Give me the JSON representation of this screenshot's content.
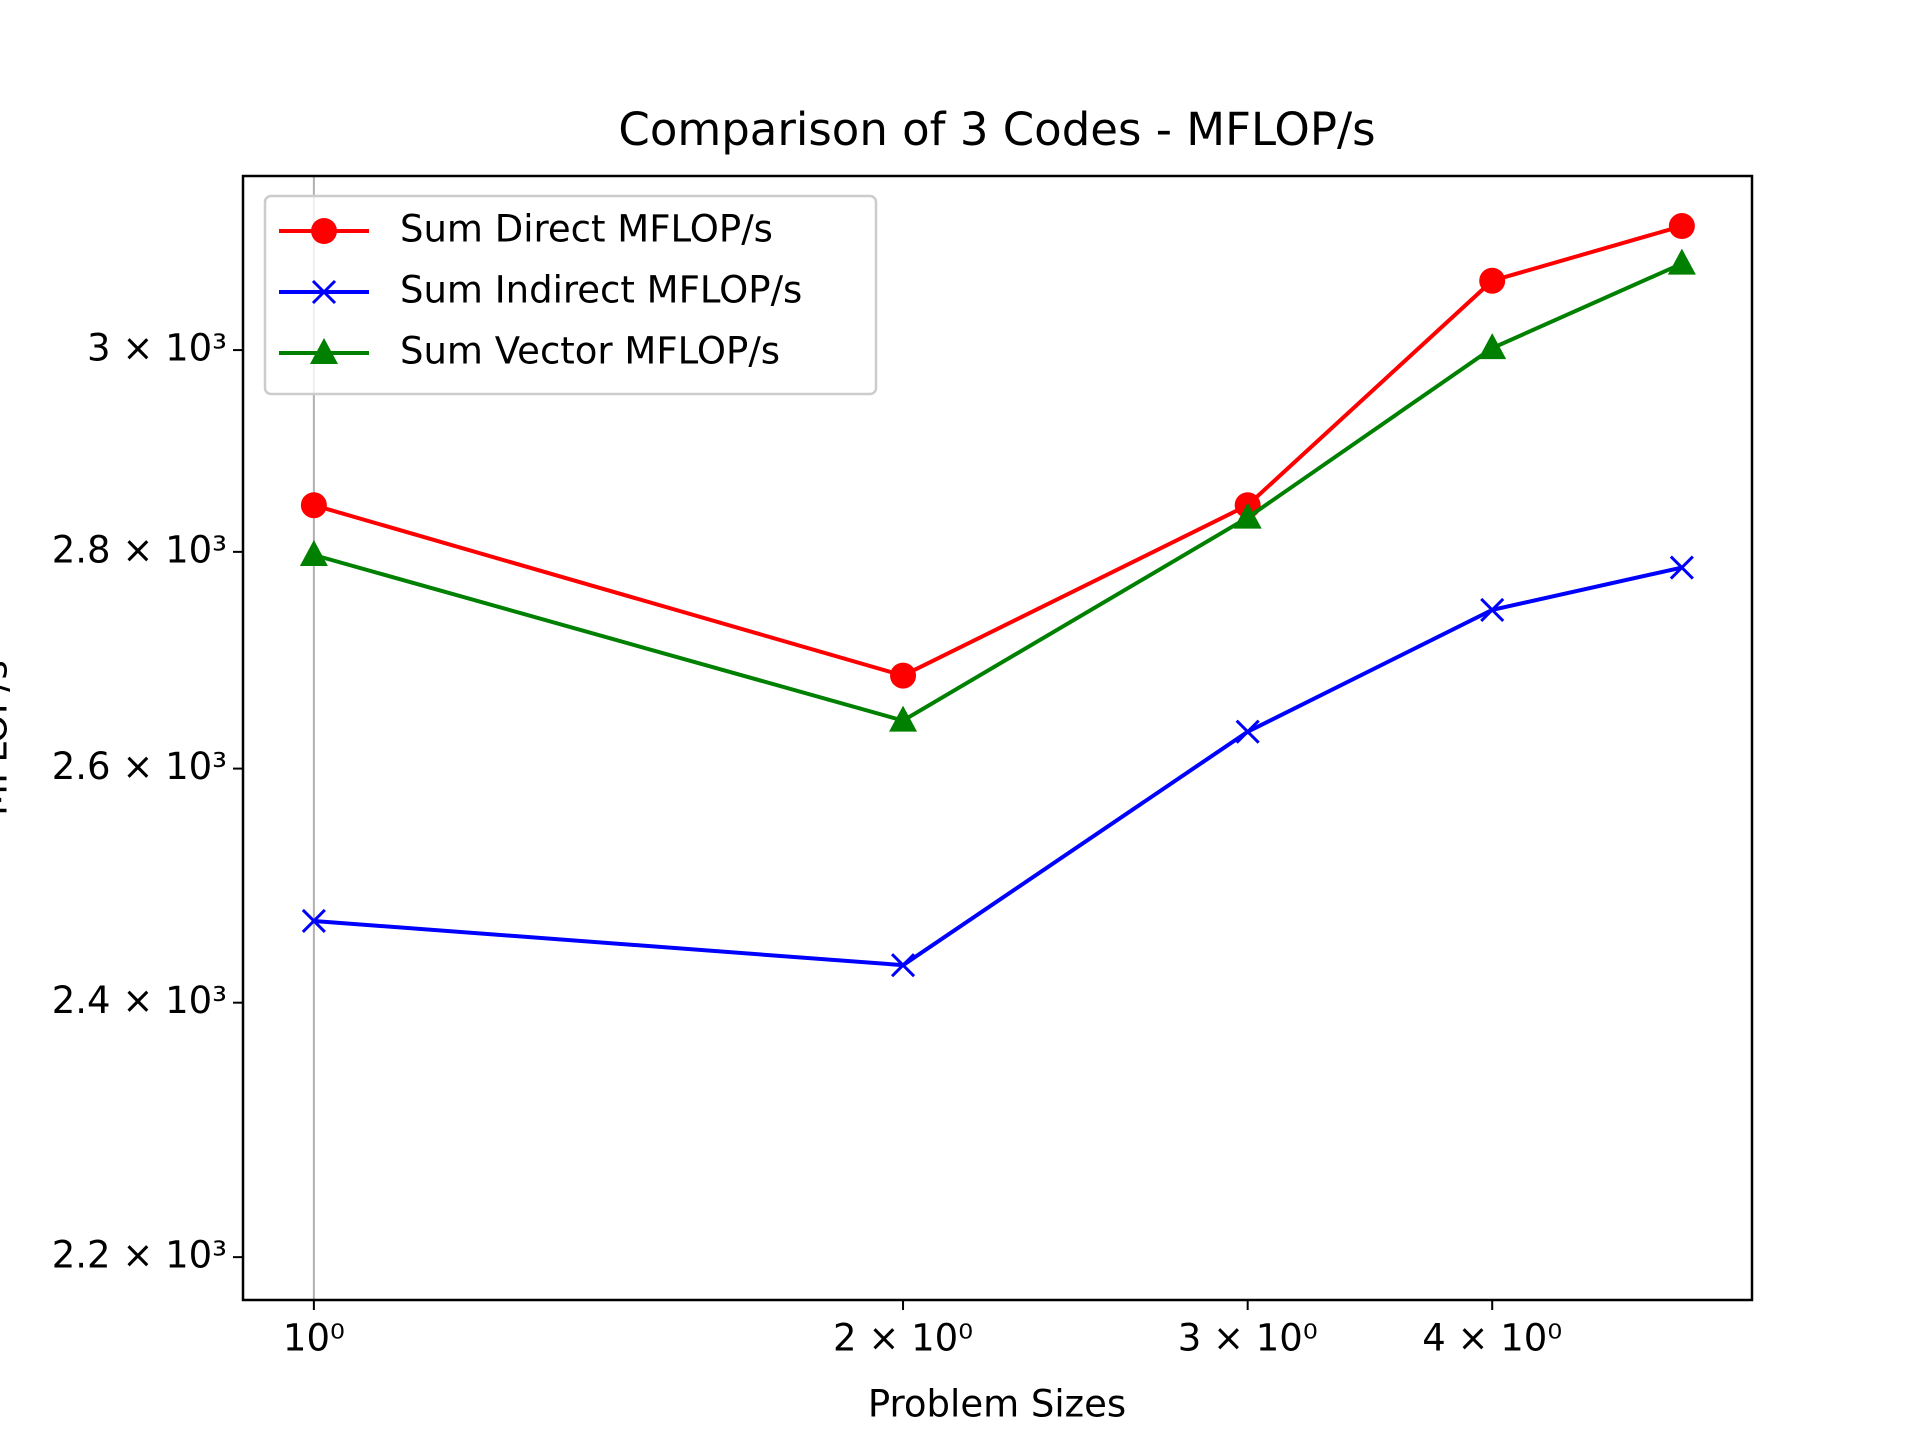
{
  "chart_data": {
    "type": "line",
    "title": "Comparison of 3 Codes - MFLOP/s",
    "xlabel": "Problem Sizes",
    "ylabel": "MFLOP/s",
    "x": [
      1,
      2,
      3,
      4,
      5
    ],
    "series": [
      {
        "name": "Sum Direct MFLOP/s",
        "color": "#ff0000",
        "marker": "circle",
        "values": [
          2845,
          2684,
          2845,
          3072,
          3130
        ]
      },
      {
        "name": "Sum Indirect MFLOP/s",
        "color": "#0000ff",
        "marker": "x",
        "values": [
          2468,
          2431,
          2633,
          2745,
          2785
        ]
      },
      {
        "name": "Sum Vector MFLOP/s",
        "color": "#008000",
        "marker": "triangle",
        "values": [
          2797,
          2643,
          2833,
          3002,
          3090
        ]
      }
    ],
    "xscale": "log",
    "yscale": "log",
    "xlim": [
      0.92,
      5.43
    ],
    "ylim": [
      2168,
      3184
    ],
    "xticks": [
      {
        "value": 1,
        "label": "10⁰"
      },
      {
        "value": 2,
        "label": "2 × 10⁰"
      },
      {
        "value": 3,
        "label": "3 × 10⁰"
      },
      {
        "value": 4,
        "label": "4 × 10⁰"
      }
    ],
    "yticks": [
      {
        "value": 2200,
        "label": "2.2 × 10³"
      },
      {
        "value": 2400,
        "label": "2.4 × 10³"
      },
      {
        "value": 2600,
        "label": "2.6 × 10³"
      },
      {
        "value": 2800,
        "label": "2.8 × 10³"
      },
      {
        "value": 3000,
        "label": "3 × 10³"
      }
    ],
    "grid_xticks": [
      1
    ],
    "legend": "upper-left"
  }
}
